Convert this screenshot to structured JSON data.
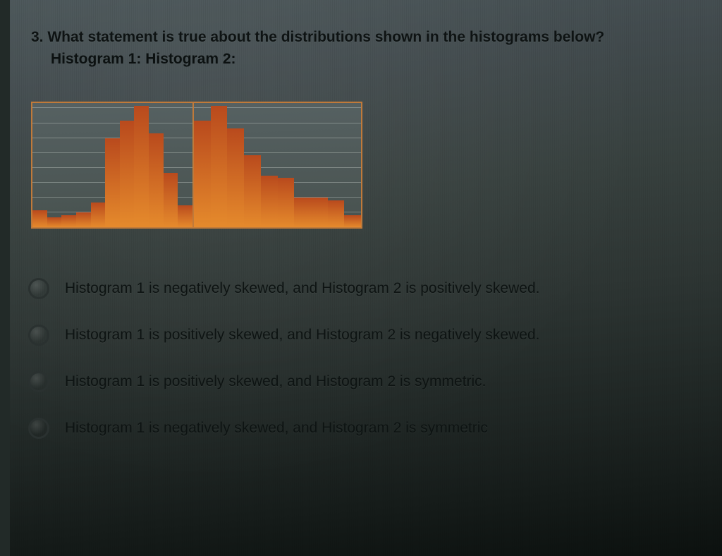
{
  "question": {
    "number": "3.",
    "text": "What statement is true about the distributions shown in the histograms below?",
    "subtext": "Histogram 1: Histogram 2:"
  },
  "histograms": {
    "panel_border_color": "#c07a3a",
    "panel_bg_top": "#566162",
    "panel_bg_bottom": "#48524f",
    "gridline_color": "rgba(220,225,220,0.35)",
    "gridline_count": 9,
    "bar_color_top": "#b94a1d",
    "bar_color_bottom": "#e58a2c",
    "hist1": {
      "type": "histogram",
      "values": [
        14,
        8,
        10,
        12,
        20,
        72,
        86,
        98,
        76,
        44,
        18
      ]
    },
    "hist2": {
      "type": "histogram",
      "values": [
        86,
        98,
        80,
        58,
        42,
        40,
        24,
        24,
        22,
        10
      ]
    }
  },
  "options": [
    {
      "text": "Histogram 1 is negatively skewed, and Histogram 2 is positively skewed."
    },
    {
      "text": "Histogram 1 is positively skewed, and Histogram 2 is negatively skewed."
    },
    {
      "text": "Histogram 1 is positively skewed, and Histogram 2 is symmetric."
    },
    {
      "text": "Histogram 1 is negatively skewed, and Histogram 2 is symmetric"
    }
  ],
  "style": {
    "text_color": "#0e1313",
    "radio_border": "#2a3130"
  }
}
